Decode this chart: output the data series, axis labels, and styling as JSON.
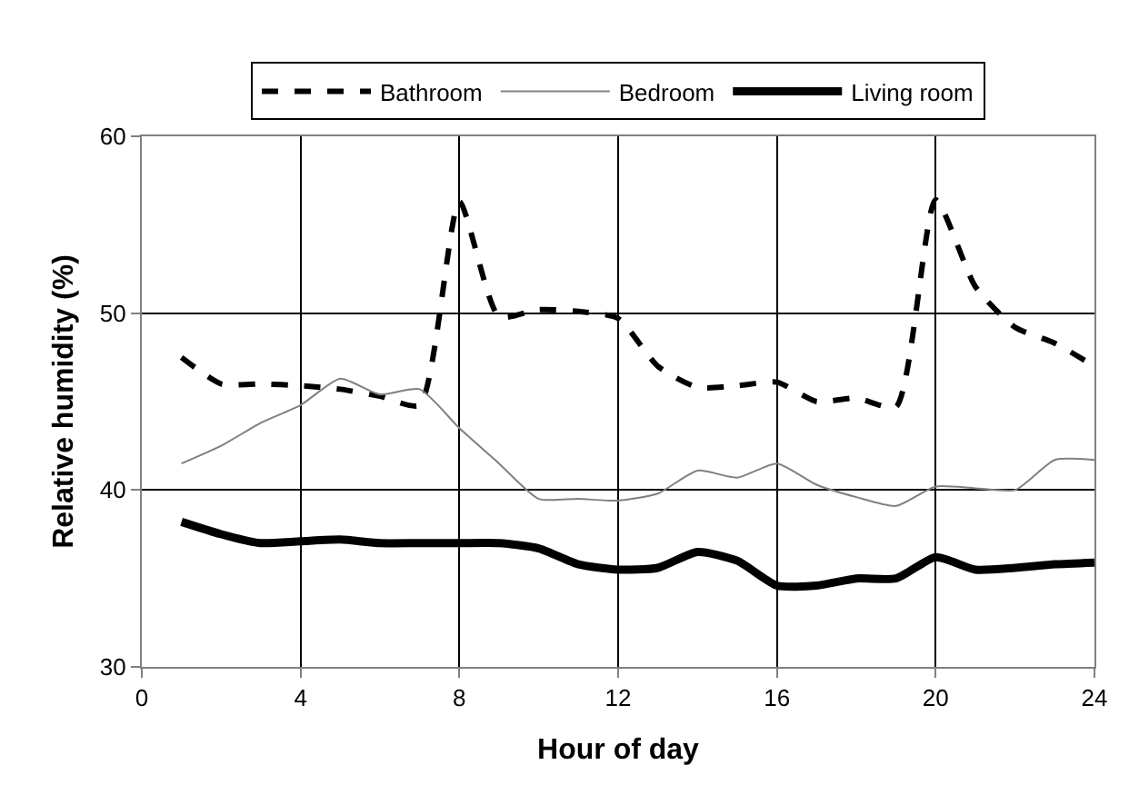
{
  "chart_data": {
    "type": "line",
    "xlabel": "Hour of day",
    "ylabel": "Relative humidity (%)",
    "x": [
      1,
      2,
      3,
      4,
      5,
      6,
      7,
      8,
      9,
      10,
      11,
      12,
      13,
      14,
      15,
      16,
      17,
      18,
      19,
      20,
      21,
      22,
      23,
      24
    ],
    "xlim": [
      0,
      24
    ],
    "xticks": [
      0,
      4,
      8,
      12,
      16,
      20,
      24
    ],
    "ylim": [
      30,
      60
    ],
    "yticks": [
      30,
      40,
      50,
      60
    ],
    "grid": true,
    "legend": "top",
    "marker": "none",
    "series": [
      {
        "name": "Bathroom",
        "color": "#000000",
        "line_style": "dashed",
        "values": [
          47.5,
          46,
          46,
          45.9,
          45.7,
          45.3,
          44.8,
          56.3,
          49.8,
          50.2,
          50.1,
          49.7,
          47,
          45.8,
          45.9,
          46.1,
          45,
          45.2,
          44.7,
          56.4,
          51.5,
          49.2,
          48.3,
          47
        ]
      },
      {
        "name": "Bedroom",
        "color": "#808080",
        "line_style": "solid",
        "values": [
          41.5,
          42.5,
          43.8,
          44.8,
          46.3,
          45.4,
          45.7,
          43.5,
          41.5,
          39.5,
          39.5,
          39.4,
          39.8,
          41.1,
          40.7,
          41.5,
          40.3,
          39.6,
          39.1,
          40.2,
          40.1,
          40,
          41.7,
          41.7
        ]
      },
      {
        "name": "Living room",
        "color": "#000000",
        "line_style": "solid",
        "values": [
          38.2,
          37.5,
          37,
          37.1,
          37.2,
          37,
          37,
          37,
          37,
          36.7,
          35.8,
          35.5,
          35.6,
          36.5,
          36,
          34.6,
          34.6,
          35,
          35,
          36.2,
          35.5,
          35.6,
          35.8,
          35.9
        ]
      }
    ]
  }
}
